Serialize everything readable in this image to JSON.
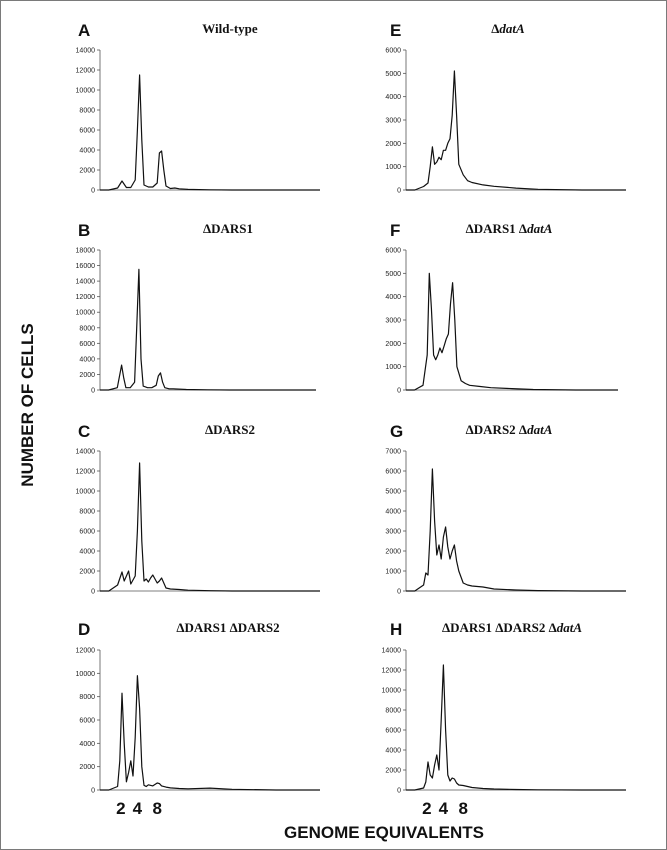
{
  "figure": {
    "ylabel": "NUMBER OF CELLS",
    "xlabel": "GENOME EQUIVALENTS"
  },
  "chart_data": [
    {
      "panel": "A",
      "title": "Wild-type",
      "title_prefix": "",
      "title_italic": "",
      "type": "line",
      "ylim": [
        0,
        14000
      ],
      "y_ticks": [
        0,
        2000,
        4000,
        6000,
        8000,
        10000,
        12000,
        14000
      ],
      "x_marks": [],
      "series": [
        {
          "x": [
            0,
            4,
            8,
            10,
            12,
            14,
            16,
            17,
            18,
            19,
            20,
            22,
            24,
            26,
            27,
            28,
            29,
            30,
            32,
            34,
            36,
            40,
            50,
            60,
            80,
            100
          ],
          "y": [
            0,
            0,
            200,
            900,
            250,
            250,
            1000,
            6000,
            11500,
            5000,
            500,
            300,
            300,
            700,
            3700,
            3900,
            2000,
            400,
            150,
            200,
            120,
            60,
            20,
            0,
            0,
            0
          ]
        }
      ]
    },
    {
      "panel": "B",
      "title": "DARS1",
      "title_prefix": "Δ",
      "title_italic": "",
      "type": "line",
      "ylim": [
        0,
        18000
      ],
      "y_ticks": [
        0,
        2000,
        4000,
        6000,
        8000,
        10000,
        12000,
        14000,
        16000,
        18000
      ],
      "x_marks": [],
      "series": [
        {
          "x": [
            0,
            4,
            8,
            10,
            11,
            12,
            14,
            16,
            17,
            18,
            19,
            20,
            22,
            24,
            26,
            27,
            28,
            29,
            30,
            32,
            34,
            40,
            50,
            60,
            80,
            100
          ],
          "y": [
            0,
            0,
            300,
            3200,
            1500,
            300,
            300,
            1000,
            8000,
            15500,
            4000,
            500,
            300,
            300,
            600,
            1800,
            2200,
            1000,
            300,
            150,
            150,
            60,
            20,
            0,
            0,
            0
          ]
        }
      ]
    },
    {
      "panel": "C",
      "title": "DARS2",
      "title_prefix": "Δ",
      "title_italic": "",
      "type": "line",
      "ylim": [
        0,
        14000
      ],
      "y_ticks": [
        0,
        2000,
        4000,
        6000,
        8000,
        10000,
        12000,
        14000
      ],
      "x_marks": [],
      "series": [
        {
          "x": [
            0,
            4,
            8,
            10,
            11,
            12,
            13,
            14,
            16,
            17,
            18,
            19,
            20,
            21,
            22,
            23,
            24,
            26,
            27,
            28,
            29,
            30,
            32,
            36,
            40,
            50,
            60,
            80,
            100
          ],
          "y": [
            0,
            0,
            600,
            1900,
            1000,
            1500,
            2000,
            700,
            1500,
            6000,
            12800,
            5000,
            1000,
            1200,
            900,
            1300,
            1600,
            800,
            1000,
            1300,
            800,
            300,
            200,
            150,
            80,
            30,
            0,
            0,
            0
          ]
        }
      ]
    },
    {
      "panel": "D",
      "title": "DARS1 ΔDARS2",
      "title_prefix": "Δ",
      "title_italic": "",
      "type": "line",
      "ylim": [
        0,
        12000
      ],
      "y_ticks": [
        0,
        2000,
        4000,
        6000,
        8000,
        10000,
        12000
      ],
      "x_marks": [
        "2",
        "4",
        "8"
      ],
      "series": [
        {
          "x": [
            0,
            4,
            8,
            9,
            10,
            11,
            12,
            13,
            14,
            15,
            16,
            17,
            18,
            19,
            20,
            21,
            22,
            24,
            26,
            27,
            28,
            30,
            32,
            36,
            40,
            50,
            60,
            80,
            100
          ],
          "y": [
            0,
            0,
            300,
            2500,
            8300,
            4000,
            700,
            1500,
            2500,
            1200,
            4500,
            9800,
            7000,
            2000,
            400,
            300,
            450,
            350,
            600,
            550,
            350,
            250,
            180,
            130,
            100,
            160,
            60,
            0,
            0
          ]
        }
      ]
    },
    {
      "panel": "E",
      "title": "",
      "title_prefix": "Δ",
      "title_italic": "datA",
      "type": "line",
      "ylim": [
        0,
        6000
      ],
      "y_ticks": [
        0,
        1000,
        2000,
        3000,
        4000,
        5000,
        6000
      ],
      "x_marks": [],
      "series": [
        {
          "x": [
            0,
            4,
            8,
            10,
            11,
            12,
            13,
            14,
            15,
            16,
            17,
            18,
            19,
            20,
            21,
            22,
            23,
            24,
            26,
            28,
            30,
            35,
            40,
            50,
            60,
            80,
            100
          ],
          "y": [
            0,
            0,
            150,
            300,
            1000,
            1850,
            1100,
            1200,
            1400,
            1300,
            1700,
            1700,
            2000,
            2200,
            3200,
            5100,
            3200,
            1100,
            650,
            400,
            320,
            220,
            160,
            80,
            30,
            0,
            0
          ]
        }
      ]
    },
    {
      "panel": "F",
      "title": "DARS1 Δ",
      "title_prefix": "Δ",
      "title_italic": "datA",
      "type": "line",
      "ylim": [
        0,
        6000
      ],
      "y_ticks": [
        0,
        1000,
        2000,
        3000,
        4000,
        5000,
        6000
      ],
      "x_marks": [],
      "series": [
        {
          "x": [
            0,
            4,
            8,
            10,
            11,
            12,
            13,
            14,
            15,
            16,
            17,
            18,
            19,
            20,
            21,
            22,
            23,
            24,
            26,
            28,
            30,
            35,
            40,
            50,
            60,
            80,
            100
          ],
          "y": [
            0,
            0,
            200,
            1500,
            5000,
            3500,
            1500,
            1300,
            1500,
            1800,
            1600,
            1900,
            2200,
            2400,
            3700,
            4600,
            3000,
            1000,
            400,
            280,
            200,
            150,
            100,
            60,
            20,
            0,
            0
          ]
        }
      ]
    },
    {
      "panel": "G",
      "title": "DARS2 Δ",
      "title_prefix": "Δ",
      "title_italic": "datA",
      "type": "line",
      "ylim": [
        0,
        7000
      ],
      "y_ticks": [
        0,
        1000,
        2000,
        3000,
        4000,
        5000,
        6000,
        7000
      ],
      "x_marks": [],
      "series": [
        {
          "x": [
            0,
            4,
            8,
            9,
            10,
            11,
            12,
            13,
            14,
            15,
            16,
            17,
            18,
            19,
            20,
            21,
            22,
            23,
            24,
            26,
            28,
            30,
            35,
            40,
            50,
            60,
            80,
            100
          ],
          "y": [
            0,
            0,
            300,
            900,
            800,
            3000,
            6100,
            3500,
            1800,
            2300,
            1600,
            2700,
            3200,
            2200,
            1600,
            2000,
            2300,
            1500,
            1000,
            400,
            300,
            250,
            200,
            100,
            50,
            20,
            0,
            0
          ]
        }
      ]
    },
    {
      "panel": "H",
      "title": "DARS1 ΔDARS2 Δ",
      "title_prefix": "Δ",
      "title_italic": "datA",
      "type": "line",
      "ylim": [
        0,
        14000
      ],
      "y_ticks": [
        0,
        2000,
        4000,
        6000,
        8000,
        10000,
        12000,
        14000
      ],
      "x_marks": [
        "2",
        "4",
        "8"
      ],
      "series": [
        {
          "x": [
            0,
            4,
            8,
            9,
            10,
            11,
            12,
            13,
            14,
            15,
            16,
            17,
            18,
            19,
            20,
            21,
            22,
            23,
            24,
            26,
            28,
            30,
            35,
            40,
            50,
            60,
            80,
            100
          ],
          "y": [
            0,
            0,
            200,
            800,
            2800,
            1500,
            1200,
            2500,
            3500,
            2000,
            7000,
            12500,
            6000,
            1500,
            900,
            1200,
            1100,
            700,
            500,
            450,
            350,
            250,
            150,
            100,
            50,
            20,
            0,
            0
          ]
        }
      ]
    }
  ]
}
